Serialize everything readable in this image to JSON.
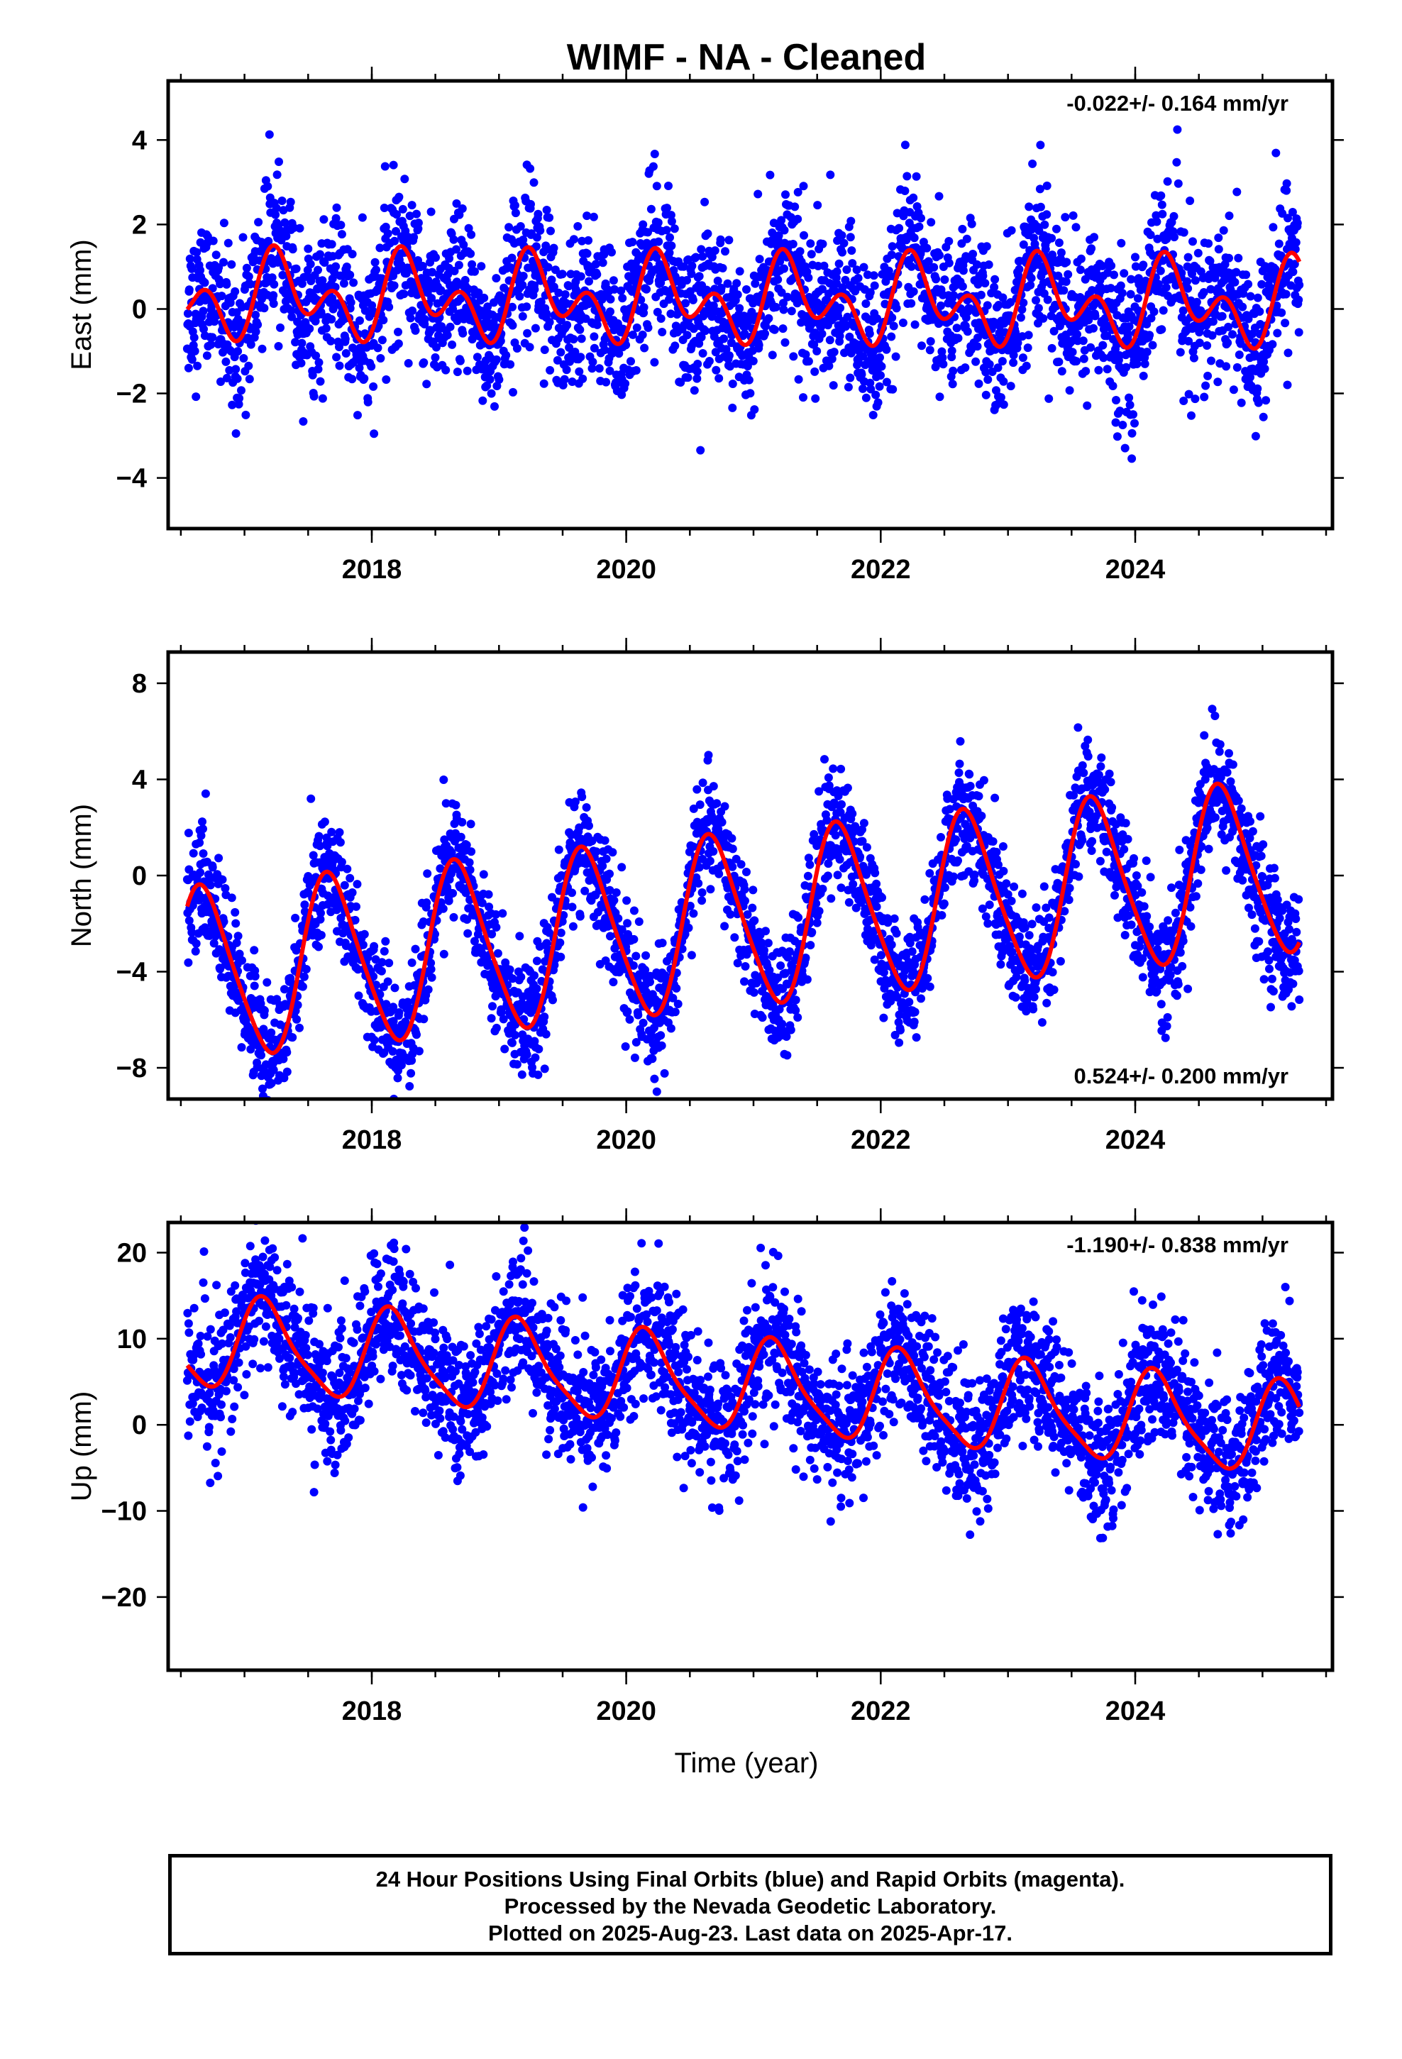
{
  "figure": {
    "title": "WIMF  - NA - Cleaned",
    "xlabel": "Time (year)",
    "footer": [
      "24 Hour Positions Using Final Orbits (blue) and Rapid Orbits (magenta).",
      "Processed by the Nevada Geodetic Laboratory.",
      "Plotted on 2025-Aug-23. Last data on 2025-Apr-17."
    ],
    "colors": {
      "observed": "#0000ff",
      "model": "#ff0000",
      "frame": "#000000"
    }
  },
  "chart_data": [
    {
      "type": "scatter",
      "component": "East",
      "ylabel": "East (mm)",
      "rate_text": "-0.022+/- 0.164 mm/yr",
      "rate_position": "top-right",
      "xlim": [
        2016.4,
        2025.55
      ],
      "ylim": [
        -5.2,
        5.4
      ],
      "xticks": [
        2018,
        2020,
        2022,
        2024
      ],
      "yticks": [
        -4,
        -2,
        0,
        2,
        4
      ],
      "ytick_labels": [
        "−4",
        "−2",
        "0",
        "2",
        "4"
      ],
      "first_obs": 2016.55,
      "last_obs": 2025.29,
      "series": [
        {
          "values_desc": "daily positions",
          "marker": "dot",
          "color": "#0000ff",
          "scatter_sigma_mm": 0.9
        },
        {
          "values_desc": "fitted model",
          "marker": "line",
          "color": "#ff0000",
          "model": {
            "offset": 0.2,
            "trend": -0.022,
            "annual_cos": -0.2,
            "annual_sin": 0.6,
            "semiannual_cos": -0.6,
            "semiannual_sin": 0.3
          }
        }
      ]
    },
    {
      "type": "scatter",
      "component": "North",
      "ylabel": "North (mm)",
      "rate_text": "0.524+/- 0.200 mm/yr",
      "rate_position": "bottom-right",
      "xlim": [
        2016.4,
        2025.55
      ],
      "ylim": [
        -9.3,
        9.3
      ],
      "xticks": [
        2018,
        2020,
        2022,
        2024
      ],
      "yticks": [
        -8,
        -4,
        0,
        4,
        8
      ],
      "ytick_labels": [
        "−8",
        "−4",
        "0",
        "4",
        "8"
      ],
      "first_obs": 2016.55,
      "last_obs": 2025.29,
      "series": [
        {
          "values_desc": "daily positions",
          "marker": "dot",
          "color": "#0000ff",
          "scatter_sigma_mm": 1.2
        },
        {
          "values_desc": "fitted model",
          "marker": "line",
          "color": "#ff0000",
          "model": {
            "offset": -1.9,
            "trend": 0.524,
            "annual_cos": -1.5,
            "annual_sin": -3.2,
            "semiannual_cos": 0.3,
            "semiannual_sin": 0.4
          }
        }
      ]
    },
    {
      "type": "scatter",
      "component": "Up",
      "ylabel": "Up (mm)",
      "rate_text": "-1.190+/- 0.838 mm/yr",
      "rate_position": "top-right",
      "xlim": [
        2016.4,
        2025.55
      ],
      "ylim": [
        -28.5,
        23.5
      ],
      "xticks": [
        2018,
        2020,
        2022,
        2024
      ],
      "yticks": [
        -20,
        -10,
        0,
        10,
        20
      ],
      "ytick_labels": [
        "−20",
        "−10",
        "0",
        "10",
        "20"
      ],
      "first_obs": 2016.55,
      "last_obs": 2025.29,
      "series": [
        {
          "values_desc": "daily positions",
          "marker": "dot",
          "color": "#0000ff",
          "scatter_sigma_mm": 4.0
        },
        {
          "values_desc": "fitted model",
          "marker": "line",
          "color": "#ff0000",
          "model": {
            "offset": 4.5,
            "trend": -1.19,
            "annual_cos": 2.5,
            "annual_sin": 4.5,
            "semiannual_cos": 0.5,
            "semiannual_sin": 1.0
          }
        }
      ]
    }
  ]
}
